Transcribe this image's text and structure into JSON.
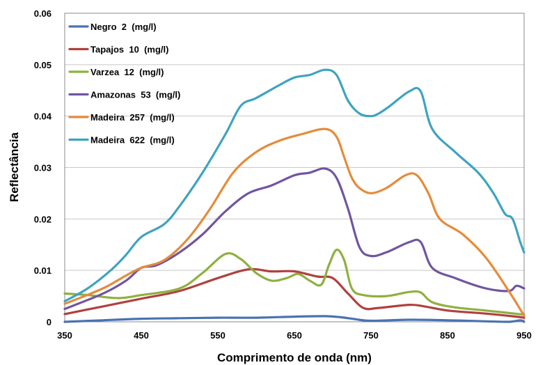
{
  "chart_data": {
    "type": "line",
    "title": "",
    "xlabel": "Comprimento de onda (nm)",
    "ylabel": "Reflectância",
    "xlim": [
      350,
      950
    ],
    "ylim": [
      0,
      0.06
    ],
    "x_ticks": [
      350,
      450,
      550,
      650,
      750,
      850,
      950
    ],
    "y_ticks": [
      0,
      0.01,
      0.02,
      0.03,
      0.04,
      0.05,
      0.06
    ],
    "x_tick_labels": [
      "350",
      "450",
      "550",
      "650",
      "750",
      "850",
      "950"
    ],
    "y_tick_labels": [
      "0",
      "0.01",
      "0.02",
      "0.03",
      "0.04",
      "0.05",
      "0.06"
    ],
    "grid": "horizontal",
    "legend": "top-left",
    "series": [
      {
        "name": "Negro  2  (mg/l)",
        "color": "#4a72b0",
        "points": [
          [
            350,
            0.0
          ],
          [
            400,
            0.0003
          ],
          [
            450,
            0.0006
          ],
          [
            500,
            0.0007
          ],
          [
            550,
            0.0008
          ],
          [
            600,
            0.0008
          ],
          [
            650,
            0.001
          ],
          [
            690,
            0.0011
          ],
          [
            710,
            0.0009
          ],
          [
            730,
            0.0005
          ],
          [
            750,
            0.0002
          ],
          [
            800,
            0.0004
          ],
          [
            850,
            0.0003
          ],
          [
            900,
            0.0001
          ],
          [
            930,
            0.0
          ],
          [
            945,
            0.0003
          ],
          [
            950,
            0.0
          ]
        ]
      },
      {
        "name": "Tapajos  10  (mg/l)",
        "color": "#b0413e",
        "points": [
          [
            350,
            0.0015
          ],
          [
            400,
            0.003
          ],
          [
            450,
            0.0045
          ],
          [
            500,
            0.006
          ],
          [
            550,
            0.0085
          ],
          [
            590,
            0.0102
          ],
          [
            620,
            0.0098
          ],
          [
            650,
            0.0098
          ],
          [
            680,
            0.0088
          ],
          [
            700,
            0.0085
          ],
          [
            720,
            0.0055
          ],
          [
            740,
            0.0027
          ],
          [
            760,
            0.0027
          ],
          [
            800,
            0.0033
          ],
          [
            820,
            0.003
          ],
          [
            850,
            0.0022
          ],
          [
            900,
            0.0016
          ],
          [
            940,
            0.001
          ],
          [
            950,
            0.0008
          ]
        ]
      },
      {
        "name": "Varzea  12  (mg/l)",
        "color": "#8fb03f",
        "points": [
          [
            350,
            0.0055
          ],
          [
            380,
            0.0052
          ],
          [
            420,
            0.0046
          ],
          [
            450,
            0.0052
          ],
          [
            500,
            0.0065
          ],
          [
            530,
            0.0095
          ],
          [
            560,
            0.0132
          ],
          [
            580,
            0.0122
          ],
          [
            600,
            0.0095
          ],
          [
            620,
            0.008
          ],
          [
            640,
            0.0085
          ],
          [
            655,
            0.0093
          ],
          [
            670,
            0.008
          ],
          [
            685,
            0.0072
          ],
          [
            695,
            0.011
          ],
          [
            705,
            0.014
          ],
          [
            715,
            0.012
          ],
          [
            725,
            0.0065
          ],
          [
            740,
            0.0052
          ],
          [
            770,
            0.005
          ],
          [
            800,
            0.0058
          ],
          [
            815,
            0.0057
          ],
          [
            830,
            0.0038
          ],
          [
            860,
            0.0028
          ],
          [
            900,
            0.0022
          ],
          [
            950,
            0.0014
          ]
        ]
      },
      {
        "name": "Amazonas  53  (mg/l)",
        "color": "#7055a0",
        "points": [
          [
            350,
            0.0025
          ],
          [
            400,
            0.0055
          ],
          [
            430,
            0.008
          ],
          [
            450,
            0.0105
          ],
          [
            470,
            0.011
          ],
          [
            500,
            0.0135
          ],
          [
            530,
            0.017
          ],
          [
            560,
            0.0215
          ],
          [
            590,
            0.025
          ],
          [
            620,
            0.0265
          ],
          [
            650,
            0.0285
          ],
          [
            670,
            0.029
          ],
          [
            690,
            0.0298
          ],
          [
            705,
            0.028
          ],
          [
            720,
            0.022
          ],
          [
            735,
            0.0145
          ],
          [
            750,
            0.0128
          ],
          [
            770,
            0.0135
          ],
          [
            800,
            0.0155
          ],
          [
            815,
            0.0155
          ],
          [
            830,
            0.0105
          ],
          [
            860,
            0.0085
          ],
          [
            900,
            0.0065
          ],
          [
            930,
            0.006
          ],
          [
            940,
            0.007
          ],
          [
            950,
            0.0065
          ]
        ]
      },
      {
        "name": "Madeira  257  (mg/l)",
        "color": "#e58b3a",
        "points": [
          [
            350,
            0.0035
          ],
          [
            400,
            0.0065
          ],
          [
            430,
            0.009
          ],
          [
            450,
            0.0105
          ],
          [
            480,
            0.012
          ],
          [
            510,
            0.016
          ],
          [
            540,
            0.022
          ],
          [
            570,
            0.029
          ],
          [
            600,
            0.033
          ],
          [
            630,
            0.0352
          ],
          [
            660,
            0.0365
          ],
          [
            690,
            0.0375
          ],
          [
            705,
            0.036
          ],
          [
            715,
            0.032
          ],
          [
            725,
            0.028
          ],
          [
            735,
            0.026
          ],
          [
            750,
            0.025
          ],
          [
            770,
            0.026
          ],
          [
            795,
            0.0285
          ],
          [
            810,
            0.0285
          ],
          [
            825,
            0.025
          ],
          [
            840,
            0.02
          ],
          [
            870,
            0.017
          ],
          [
            900,
            0.0125
          ],
          [
            930,
            0.006
          ],
          [
            950,
            0.0012
          ]
        ]
      },
      {
        "name": "Madeira  622  (mg/l)",
        "color": "#3ea3c0",
        "points": [
          [
            350,
            0.004
          ],
          [
            380,
            0.0065
          ],
          [
            410,
            0.01
          ],
          [
            430,
            0.013
          ],
          [
            450,
            0.0165
          ],
          [
            480,
            0.019
          ],
          [
            500,
            0.0225
          ],
          [
            530,
            0.029
          ],
          [
            560,
            0.0365
          ],
          [
            580,
            0.042
          ],
          [
            600,
            0.0435
          ],
          [
            630,
            0.046
          ],
          [
            650,
            0.0475
          ],
          [
            670,
            0.048
          ],
          [
            690,
            0.049
          ],
          [
            705,
            0.048
          ],
          [
            720,
            0.043
          ],
          [
            735,
            0.0405
          ],
          [
            750,
            0.04
          ],
          [
            760,
            0.0405
          ],
          [
            775,
            0.042
          ],
          [
            800,
            0.0448
          ],
          [
            815,
            0.0448
          ],
          [
            830,
            0.0375
          ],
          [
            860,
            0.033
          ],
          [
            890,
            0.029
          ],
          [
            910,
            0.025
          ],
          [
            925,
            0.021
          ],
          [
            935,
            0.02
          ],
          [
            945,
            0.0155
          ],
          [
            950,
            0.0135
          ]
        ]
      }
    ]
  }
}
